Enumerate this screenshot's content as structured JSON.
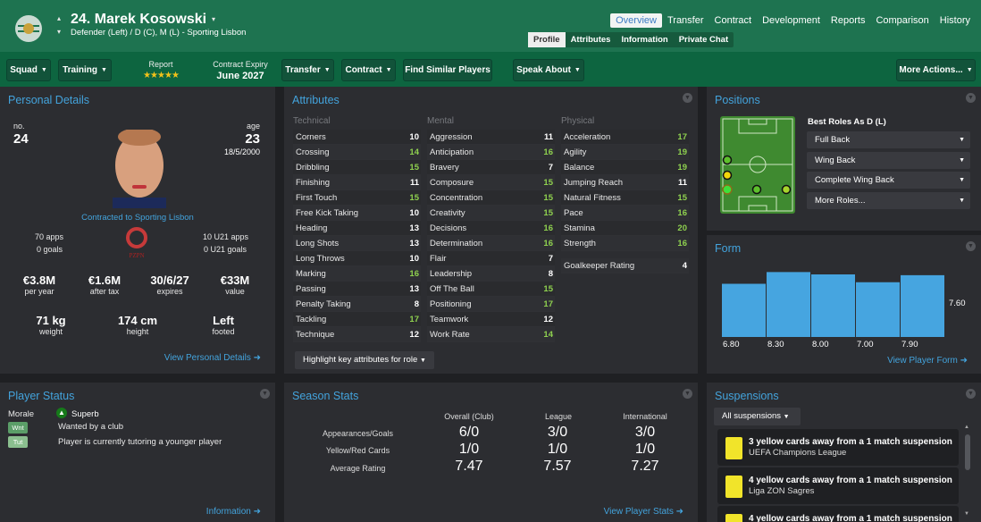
{
  "header": {
    "player_title": "24. Marek Kosowski",
    "subtitle": "Defender (Left) / D (C), M (L) - Sporting Lisbon",
    "tabs": [
      "Overview",
      "Transfer",
      "Contract",
      "Development",
      "Reports",
      "Comparison",
      "History"
    ],
    "subtabs": [
      "Profile",
      "Attributes",
      "Information",
      "Private Chat"
    ]
  },
  "toolbar": {
    "squad": "Squad",
    "training": "Training",
    "report_label": "Report",
    "report_stars": 4.5,
    "contract_label": "Contract Expiry",
    "contract_value": "June 2027",
    "transfer": "Transfer",
    "contract": "Contract",
    "find_similar": "Find Similar Players",
    "speak_about": "Speak About",
    "more_actions": "More Actions..."
  },
  "personal": {
    "title": "Personal Details",
    "no_label": "no.",
    "no": "24",
    "age_label": "age",
    "age": "23",
    "dob": "18/5/2000",
    "contracted": "Contracted to Sporting Lisbon",
    "apps": "70 apps",
    "goals": "0 goals",
    "u21_apps": "10 U21 apps",
    "u21_goals": "0 U21 goals",
    "fed_logo": "PZPN",
    "wage": "€3.8M",
    "wage_label": "per year",
    "after_tax": "€1.6M",
    "after_tax_label": "after tax",
    "expires": "30/6/27",
    "expires_label": "expires",
    "value": "€33M",
    "value_label": "value",
    "weight": "71 kg",
    "weight_label": "weight",
    "height": "174 cm",
    "height_label": "height",
    "foot": "Left",
    "foot_label": "footed",
    "link": "View Personal Details"
  },
  "attributes": {
    "title": "Attributes",
    "highlight": "Highlight key attributes for role",
    "gk_label": "Goalkeeper Rating",
    "gk_value": "4",
    "columns": [
      {
        "heading": "Technical",
        "items": [
          [
            "Corners",
            "10"
          ],
          [
            "Crossing",
            "14"
          ],
          [
            "Dribbling",
            "15"
          ],
          [
            "Finishing",
            "11"
          ],
          [
            "First Touch",
            "15"
          ],
          [
            "Free Kick Taking",
            "10"
          ],
          [
            "Heading",
            "13"
          ],
          [
            "Long Shots",
            "13"
          ],
          [
            "Long Throws",
            "10"
          ],
          [
            "Marking",
            "16"
          ],
          [
            "Passing",
            "13"
          ],
          [
            "Penalty Taking",
            "8"
          ],
          [
            "Tackling",
            "17"
          ],
          [
            "Technique",
            "12"
          ]
        ]
      },
      {
        "heading": "Mental",
        "items": [
          [
            "Aggression",
            "11"
          ],
          [
            "Anticipation",
            "16"
          ],
          [
            "Bravery",
            "7"
          ],
          [
            "Composure",
            "15"
          ],
          [
            "Concentration",
            "15"
          ],
          [
            "Creativity",
            "15"
          ],
          [
            "Decisions",
            "16"
          ],
          [
            "Determination",
            "16"
          ],
          [
            "Flair",
            "7"
          ],
          [
            "Leadership",
            "8"
          ],
          [
            "Off The Ball",
            "15"
          ],
          [
            "Positioning",
            "17"
          ],
          [
            "Teamwork",
            "12"
          ],
          [
            "Work Rate",
            "14"
          ]
        ]
      },
      {
        "heading": "Physical",
        "items": [
          [
            "Acceleration",
            "17"
          ],
          [
            "Agility",
            "19"
          ],
          [
            "Balance",
            "19"
          ],
          [
            "Jumping Reach",
            "11"
          ],
          [
            "Natural Fitness",
            "15"
          ],
          [
            "Pace",
            "16"
          ],
          [
            "Stamina",
            "20"
          ],
          [
            "Strength",
            "16"
          ]
        ]
      }
    ]
  },
  "positions": {
    "title": "Positions",
    "best_roles": "Best Roles As D (L)",
    "roles": [
      "Full Back",
      "Wing Back",
      "Complete Wing Back",
      "More Roles..."
    ]
  },
  "form": {
    "title": "Form",
    "link": "View Player Form"
  },
  "chart_data": {
    "type": "bar",
    "categories": [
      "6.80",
      "8.30",
      "8.00",
      "7.00",
      "7.90"
    ],
    "values": [
      6.8,
      8.3,
      8.0,
      7.0,
      7.9
    ],
    "average_label": "7.60",
    "average": 7.6,
    "ylim": [
      0,
      10
    ],
    "color": "#46a5e0"
  },
  "status": {
    "title": "Player Status",
    "morale_label": "Morale",
    "morale": "Superb",
    "items": [
      {
        "badge": "Wnt",
        "text": "Wanted by a club"
      },
      {
        "badge": "Tut",
        "text": "Player is currently tutoring a younger player"
      }
    ],
    "link": "Information"
  },
  "season": {
    "title": "Season Stats",
    "cols": [
      "Overall (Club)",
      "League",
      "International"
    ],
    "rows": [
      {
        "label": "Appearances/Goals",
        "values": [
          "6/0",
          "3/0",
          "3/0"
        ]
      },
      {
        "label": "Yellow/Red Cards",
        "values": [
          "1/0",
          "1/0",
          "1/0"
        ]
      },
      {
        "label": "Average Rating",
        "values": [
          "7.47",
          "7.57",
          "7.27"
        ]
      }
    ],
    "link": "View Player Stats"
  },
  "suspensions": {
    "title": "Suspensions",
    "filter": "All suspensions",
    "items": [
      {
        "text": "3 yellow cards away from a 1 match suspension",
        "comp": "UEFA Champions League"
      },
      {
        "text": "4 yellow cards away from a 1 match suspension",
        "comp": "Liga ZON Sagres"
      },
      {
        "text": "4 yellow cards away from a 1 match suspension",
        "comp": ""
      }
    ]
  },
  "colors": {
    "header": "#1e7350",
    "toolbar": "#0d6540",
    "accent": "#43a3dc",
    "high_attr": "#8fd14f"
  }
}
